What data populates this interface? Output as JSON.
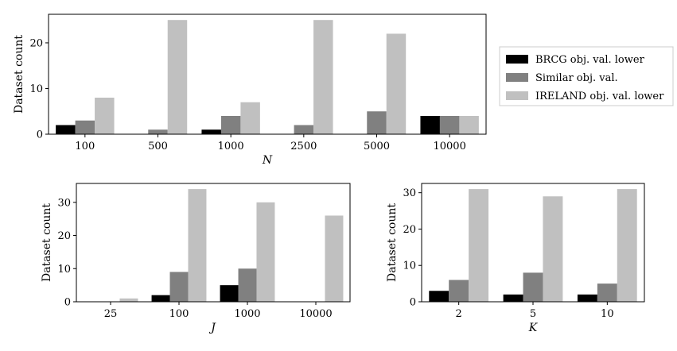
{
  "colors": {
    "BRCG obj. val. lower": "#000000",
    "Similar obj. val.": "#808080",
    "IRELAND obj. val. lower": "#c0c0c0"
  },
  "legend": {
    "placement": "right of top chart",
    "entries": [
      "BRCG obj. val. lower",
      "Similar obj. val.",
      "IRELAND obj. val. lower"
    ]
  },
  "chart_data": [
    {
      "type": "bar",
      "xlabel": "N",
      "ylabel": "Dataset count",
      "categories": [
        "100",
        "500",
        "1000",
        "2500",
        "5000",
        "10000"
      ],
      "ylim": [
        0,
        26.25
      ],
      "yticks": [
        0,
        10,
        20
      ],
      "series": [
        {
          "name": "BRCG obj. val. lower",
          "values": [
            2,
            0,
            1,
            0,
            0,
            4
          ]
        },
        {
          "name": "Similar obj. val.",
          "values": [
            3,
            1,
            4,
            2,
            5,
            4
          ]
        },
        {
          "name": "IRELAND obj. val. lower",
          "values": [
            8,
            25,
            7,
            25,
            22,
            4
          ]
        }
      ]
    },
    {
      "type": "bar",
      "xlabel": "J",
      "ylabel": "Dataset count",
      "categories": [
        "25",
        "100",
        "1000",
        "10000"
      ],
      "ylim": [
        0,
        35.7
      ],
      "yticks": [
        0,
        10,
        20,
        30
      ],
      "series": [
        {
          "name": "BRCG obj. val. lower",
          "values": [
            0,
            2,
            5,
            0
          ]
        },
        {
          "name": "Similar obj. val.",
          "values": [
            0,
            9,
            10,
            0
          ]
        },
        {
          "name": "IRELAND obj. val. lower",
          "values": [
            1,
            34,
            30,
            26
          ]
        }
      ]
    },
    {
      "type": "bar",
      "xlabel": "K",
      "ylabel": "Dataset count",
      "categories": [
        "2",
        "5",
        "10"
      ],
      "ylim": [
        0,
        32.55
      ],
      "yticks": [
        0,
        10,
        20,
        30
      ],
      "series": [
        {
          "name": "BRCG obj. val. lower",
          "values": [
            3,
            2,
            2
          ]
        },
        {
          "name": "Similar obj. val.",
          "values": [
            6,
            8,
            5
          ]
        },
        {
          "name": "IRELAND obj. val. lower",
          "values": [
            31,
            29,
            31
          ]
        }
      ]
    }
  ]
}
